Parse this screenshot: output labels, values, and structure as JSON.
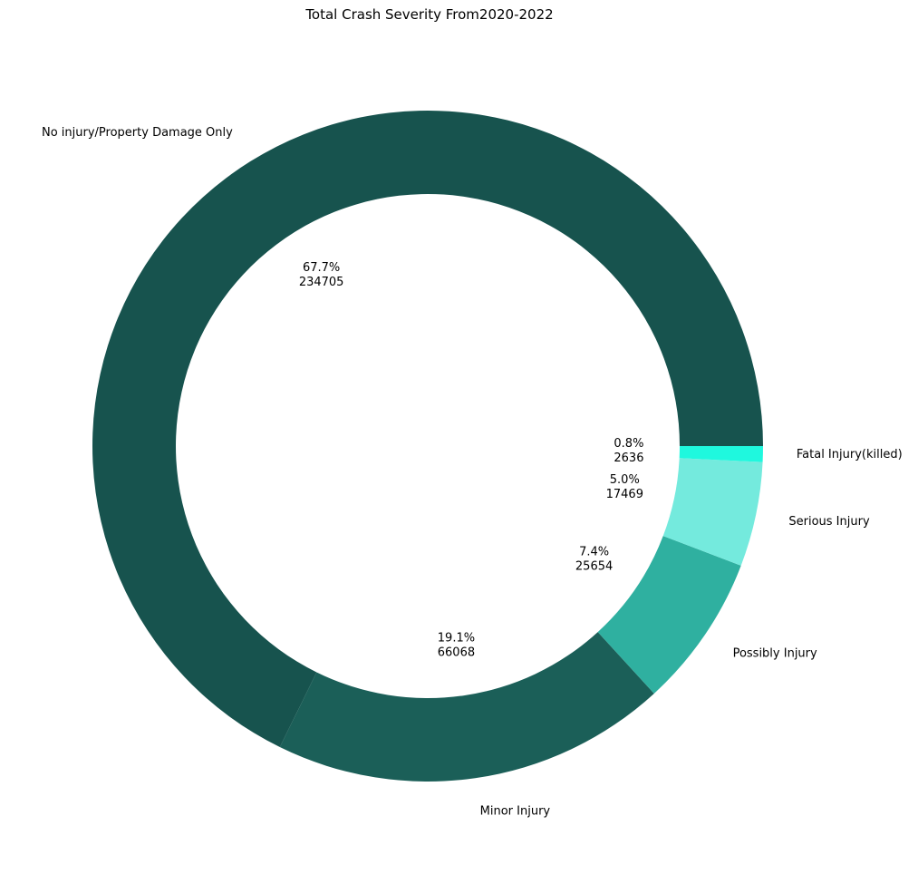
{
  "chart_data": {
    "type": "pie",
    "title": "Total Crash Severity From2020-2022",
    "donut": true,
    "slices": [
      {
        "label": "No injury/Property Damage Only",
        "value": 234705,
        "percent": "67.7%",
        "color": "#17534e"
      },
      {
        "label": "Minor Injury",
        "value": 66068,
        "percent": "19.1%",
        "color": "#1b5f58"
      },
      {
        "label": "Possibly Injury",
        "value": 25654,
        "percent": "7.4%",
        "color": "#2fb0a0"
      },
      {
        "label": "Serious Injury",
        "value": 17469,
        "percent": "5.0%",
        "color": "#74eadd"
      },
      {
        "label": "Fatal Injury(killed)",
        "value": 2636,
        "percent": "0.8%",
        "color": "#1ff8de"
      }
    ],
    "start_angle_deg": 0,
    "direction": "counterclockwise"
  }
}
